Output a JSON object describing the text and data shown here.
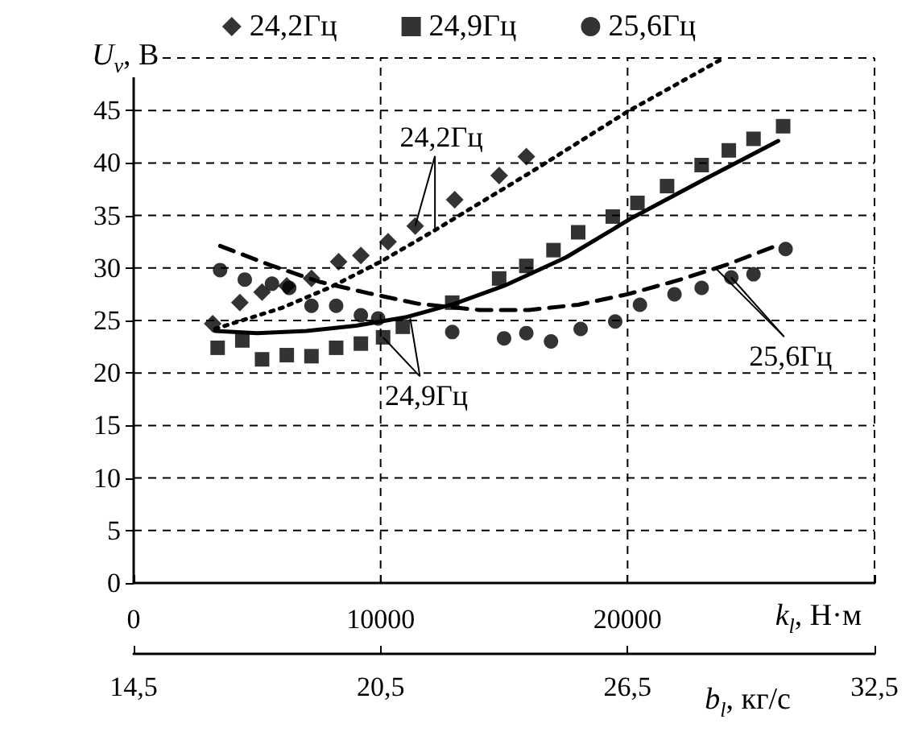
{
  "chart_data": {
    "type": "scatter",
    "xlabel": "k$_{l}$, Н·м",
    "ylabel": "U$_{v}$, В",
    "x2label": "b$_{l}$, кг/с",
    "xlim": [
      0,
      30000
    ],
    "xticks": [
      0,
      10000,
      20000,
      {
        "value": 30000,
        "label": null
      }
    ],
    "x2lim": [
      14.5,
      32.5
    ],
    "x2ticks": [
      {
        "value": 14.5,
        "label": "14,5"
      },
      {
        "value": 20.5,
        "label": "20,5"
      },
      {
        "value": 26.5,
        "label": "26,5"
      },
      {
        "value": 32.5,
        "label": "32,5"
      }
    ],
    "ylim": [
      0,
      50
    ],
    "yticks": [
      0,
      5,
      10,
      15,
      20,
      25,
      30,
      35,
      40,
      45,
      {
        "value": 50,
        "label": null
      }
    ],
    "grid": true,
    "legend": "top",
    "series": [
      {
        "name": "24,2Гц",
        "marker": "diamond",
        "color": "#000000",
        "x": [
          3200,
          4300,
          5200,
          6200,
          7200,
          8300,
          9200,
          10300,
          11400,
          13000,
          14800,
          15900
        ],
        "values": [
          24.7,
          26.7,
          27.7,
          28.3,
          29.0,
          30.6,
          31.2,
          32.5,
          34.0,
          36.5,
          38.8,
          40.6
        ]
      },
      {
        "name": "24,9Гц",
        "marker": "square",
        "color": "#000000",
        "x": [
          3400,
          4400,
          5200,
          6200,
          7200,
          8200,
          9200,
          10100,
          10900,
          12900,
          14800,
          15900,
          17000,
          18000,
          19400,
          20400,
          21600,
          23000,
          24100,
          25100,
          26300
        ],
        "values": [
          22.4,
          23.1,
          21.3,
          21.7,
          21.6,
          22.4,
          22.8,
          23.4,
          24.4,
          26.7,
          29.0,
          30.2,
          31.7,
          33.4,
          34.9,
          36.2,
          37.8,
          39.8,
          41.2,
          42.3,
          43.5
        ]
      },
      {
        "name": "25,6Гц",
        "marker": "circle",
        "color": "#000000",
        "x": [
          3500,
          4500,
          5600,
          6300,
          7200,
          8200,
          9200,
          9900,
          12900,
          15000,
          15900,
          16900,
          18100,
          19500,
          20500,
          21900,
          23000,
          24200,
          25100,
          26400
        ],
        "values": [
          29.8,
          28.9,
          28.5,
          28.1,
          26.4,
          26.4,
          25.5,
          25.2,
          23.9,
          23.3,
          23.8,
          23.0,
          24.2,
          24.9,
          26.5,
          27.5,
          28.1,
          29.1,
          29.4,
          31.8
        ]
      },
      {
        "type": "line",
        "marker": "none",
        "line_style": "dotted",
        "color": "#000000",
        "x": [
          3300,
          6000,
          8000,
          10000,
          12200,
          16000,
          20000,
          23900
        ],
        "values": [
          24.2,
          26.2,
          28.2,
          30.6,
          33.6,
          39.0,
          44.9,
          50.0
        ]
      },
      {
        "type": "line",
        "marker": "none",
        "line_style": "solid",
        "color": "#000000",
        "x": [
          3300,
          5000,
          7000,
          9000,
          11000,
          13000,
          15000,
          17500,
          20200,
          23000,
          26100
        ],
        "values": [
          24.0,
          23.8,
          24.0,
          24.5,
          25.3,
          26.6,
          28.3,
          31.0,
          34.8,
          38.3,
          42.1
        ]
      },
      {
        "type": "line",
        "marker": "none",
        "line_style": "dashed",
        "color": "#000000",
        "x": [
          3500,
          5500,
          7500,
          9500,
          11500,
          14000,
          16000,
          18000,
          20000,
          22000,
          24000,
          26000
        ],
        "values": [
          32.1,
          30.3,
          28.7,
          27.6,
          26.6,
          26.0,
          26.0,
          26.5,
          27.5,
          28.8,
          30.3,
          32.1
        ]
      }
    ],
    "annotations": [
      {
        "text": "24,2Гц",
        "x": 12200,
        "y": 33.6
      },
      {
        "text": "24,9Гц",
        "x": 11200,
        "y": 25.2
      },
      {
        "text": "25,6Гц",
        "x": 23600,
        "y": 29.9
      }
    ]
  }
}
